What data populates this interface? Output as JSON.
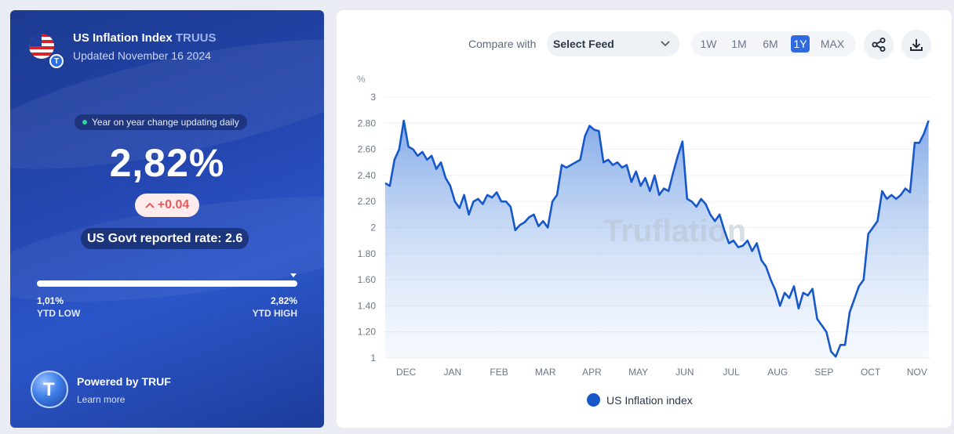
{
  "header": {
    "title": "US Inflation Index",
    "ticker": "TRUUS",
    "updated": "Updated November 16 2024",
    "flag_badge": "T"
  },
  "summary": {
    "yoy_label": "Year on year change updating daily",
    "value": "2,82%",
    "change": "+0.04",
    "gov_rate": "US Govt reported rate: 2.6",
    "ytd_low_value": "1,01%",
    "ytd_low_label": "YTD LOW",
    "ytd_high_value": "2,82%",
    "ytd_high_label": "YTD HIGH",
    "range_fraction": 1.0
  },
  "footer": {
    "powered_by": "Powered by TRUF",
    "learn_more": "Learn more"
  },
  "controls": {
    "compare_label": "Compare with",
    "select_feed": "Select Feed",
    "ranges": [
      "1W",
      "1M",
      "6M",
      "1Y",
      "MAX"
    ],
    "active_range": "1Y"
  },
  "colors": {
    "line": "#1657c9",
    "accent": "#2f6bdf",
    "change_negative_text": "#e45b5b",
    "panel": "#2446b0"
  },
  "chart_data": {
    "type": "area",
    "xlabel": "",
    "ylabel": "%",
    "ylim": [
      1,
      3
    ],
    "yticks": [
      1,
      1.2,
      1.4,
      1.6,
      1.8,
      2,
      2.2,
      2.4,
      2.6,
      2.8,
      3
    ],
    "ytick_labels": [
      "1",
      "1.20",
      "1.40",
      "1.60",
      "1.80",
      "2",
      "2.20",
      "2.40",
      "2.60",
      "2.80",
      "3"
    ],
    "xticks": [
      "DEC",
      "JAN",
      "FEB",
      "MAR",
      "APR",
      "MAY",
      "JUN",
      "JUL",
      "AUG",
      "SEP",
      "OCT",
      "NOV"
    ],
    "watermark": "Truflation",
    "series": [
      {
        "name": "US Inflation index",
        "x_month": [
          0,
          0.1,
          0.2,
          0.3,
          0.4,
          0.5,
          0.6,
          0.7,
          0.8,
          0.9,
          1,
          1.1,
          1.2,
          1.3,
          1.4,
          1.5,
          1.6,
          1.7,
          1.8,
          1.9,
          2,
          2.1,
          2.2,
          2.3,
          2.4,
          2.5,
          2.6,
          2.7,
          2.8,
          2.9,
          3,
          3.1,
          3.2,
          3.3,
          3.4,
          3.5,
          3.6,
          3.7,
          3.8,
          3.9,
          4,
          4.1,
          4.2,
          4.3,
          4.4,
          4.5,
          4.6,
          4.7,
          4.8,
          4.9,
          5,
          5.1,
          5.2,
          5.3,
          5.4,
          5.5,
          5.6,
          5.7,
          5.8,
          5.9,
          6,
          6.1,
          6.2,
          6.3,
          6.4,
          6.5,
          6.6,
          6.7,
          6.8,
          6.9,
          7,
          7.1,
          7.2,
          7.3,
          7.4,
          7.5,
          7.6,
          7.7,
          7.8,
          7.9,
          8,
          8.1,
          8.2,
          8.3,
          8.4,
          8.5,
          8.6,
          8.7,
          8.8,
          8.9,
          9,
          9.1,
          9.2,
          9.3,
          9.4,
          9.5,
          9.6,
          9.7,
          9.8,
          9.9,
          10,
          10.1,
          10.2,
          10.3,
          10.4,
          10.5,
          10.6,
          10.7,
          10.8,
          10.9,
          11,
          11.1,
          11.2,
          11.3,
          11.4,
          11.5,
          11.6,
          11.7
        ],
        "values": [
          2.34,
          2.32,
          2.52,
          2.6,
          2.82,
          2.62,
          2.6,
          2.55,
          2.58,
          2.52,
          2.55,
          2.45,
          2.5,
          2.38,
          2.32,
          2.2,
          2.15,
          2.25,
          2.1,
          2.2,
          2.22,
          2.18,
          2.25,
          2.23,
          2.27,
          2.2,
          2.2,
          2.16,
          1.98,
          2.02,
          2.04,
          2.08,
          2.1,
          2.01,
          2.05,
          2.0,
          2.2,
          2.25,
          2.48,
          2.46,
          2.48,
          2.5,
          2.52,
          2.7,
          2.78,
          2.75,
          2.74,
          2.5,
          2.52,
          2.48,
          2.5,
          2.46,
          2.48,
          2.35,
          2.43,
          2.32,
          2.38,
          2.28,
          2.4,
          2.25,
          2.3,
          2.28,
          2.42,
          2.55,
          2.66,
          2.22,
          2.2,
          2.16,
          2.22,
          2.18,
          2.1,
          2.05,
          2.1,
          1.98,
          1.88,
          1.9,
          1.85,
          1.86,
          1.9,
          1.82,
          1.88,
          1.75,
          1.7,
          1.6,
          1.52,
          1.4,
          1.5,
          1.46,
          1.55,
          1.38,
          1.5,
          1.48,
          1.53,
          1.3,
          1.25,
          1.2,
          1.05,
          1.01,
          1.1,
          1.1,
          1.35,
          1.45,
          1.55,
          1.6,
          1.95,
          2.0,
          2.05,
          2.28,
          2.22,
          2.25,
          2.22,
          2.25,
          2.3,
          2.27,
          2.65,
          2.65,
          2.72,
          2.82
        ]
      }
    ],
    "legend": "bottom-center"
  }
}
